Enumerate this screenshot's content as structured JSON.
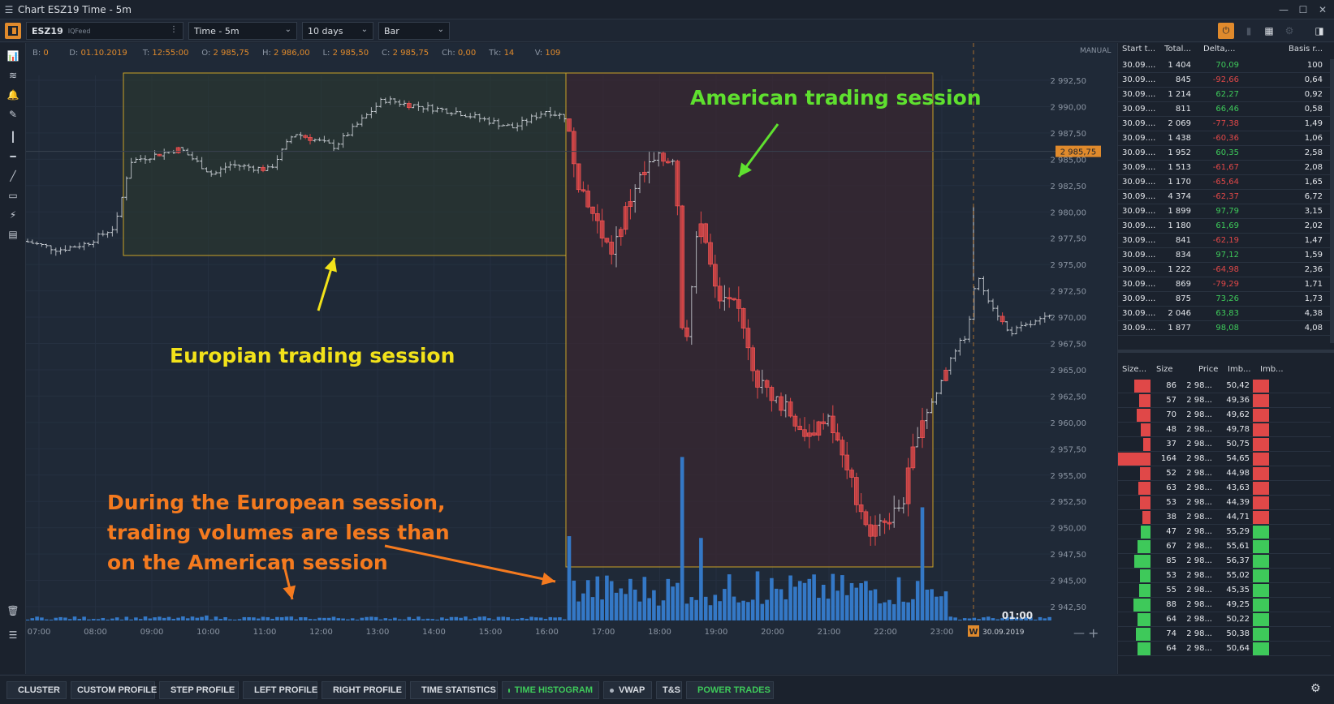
{
  "window": {
    "title": "Chart ESZ19 Time - 5m"
  },
  "toolbar": {
    "symbol": "ESZ19",
    "feed": "IQFeed",
    "timeframe": "Time - 5m",
    "period": "10 days",
    "chart_style": "Bar"
  },
  "ohlc": {
    "b_label": "B:",
    "b": "0",
    "d_label": "D:",
    "d": "01.10.2019",
    "t_label": "T:",
    "t": "12:55:00",
    "o_label": "O:",
    "o": "2 985,75",
    "h_label": "H:",
    "h": "2 986,00",
    "l_label": "L:",
    "l": "2 985,50",
    "c_label": "C:",
    "c": "2 985,75",
    "ch_label": "Ch:",
    "ch": "0,00",
    "tk_label": "Tk:",
    "tk": "14",
    "v_label": "V:",
    "v": "109"
  },
  "chart": {
    "mode": "MANUAL",
    "current_price": "2 985,75",
    "timer": "01:00",
    "week_marker": "W",
    "date_marker": "30.09.2019",
    "price_axis": [
      "2 992,50",
      "2 990,00",
      "2 987,50",
      "2 985,00",
      "2 982,50",
      "2 980,00",
      "2 977,50",
      "2 975,00",
      "2 972,50",
      "2 970,00",
      "2 967,50",
      "2 965,00",
      "2 962,50",
      "2 960,00",
      "2 957,50",
      "2 955,00",
      "2 952,50",
      "2 950,00",
      "2 947,50",
      "2 945,00",
      "2 942,50"
    ],
    "time_axis": [
      "07:00",
      "08:00",
      "09:00",
      "10:00",
      "11:00",
      "12:00",
      "13:00",
      "14:00",
      "15:00",
      "16:00",
      "17:00",
      "18:00",
      "19:00",
      "20:00",
      "21:00",
      "22:00",
      "23:00"
    ],
    "colors": {
      "european_box": "#c9a227",
      "american_box": "#c9a227",
      "bear": "#e04848",
      "bull": "#cfd4da",
      "volume": "#3478c6"
    }
  },
  "annotations": {
    "american": "American trading session",
    "european": "Europian trading session",
    "volume_note": "During the European session,\ntrading volumes are less than\n on the American session",
    "colors": {
      "american": "#5fe02f",
      "european": "#f2e21a",
      "volume_note": "#f47a1f"
    }
  },
  "trades_table": {
    "headers": [
      "Start t...",
      "Total...",
      "Delta,...",
      "Basis r..."
    ],
    "rows": [
      [
        "30.09....",
        "1 404",
        "70,09",
        "100"
      ],
      [
        "30.09....",
        "845",
        "-92,66",
        "0,64"
      ],
      [
        "30.09....",
        "1 214",
        "62,27",
        "0,92"
      ],
      [
        "30.09....",
        "811",
        "66,46",
        "0,58"
      ],
      [
        "30.09....",
        "2 069",
        "-77,38",
        "1,49"
      ],
      [
        "30.09....",
        "1 438",
        "-60,36",
        "1,06"
      ],
      [
        "30.09....",
        "1 952",
        "60,35",
        "2,58"
      ],
      [
        "30.09....",
        "1 513",
        "-61,67",
        "2,08"
      ],
      [
        "30.09....",
        "1 170",
        "-65,64",
        "1,65"
      ],
      [
        "30.09....",
        "4 374",
        "-62,37",
        "6,72"
      ],
      [
        "30.09....",
        "1 899",
        "97,79",
        "3,15"
      ],
      [
        "30.09....",
        "1 180",
        "61,69",
        "2,02"
      ],
      [
        "30.09....",
        "841",
        "-62,19",
        "1,47"
      ],
      [
        "30.09....",
        "834",
        "97,12",
        "1,59"
      ],
      [
        "30.09....",
        "1 222",
        "-64,98",
        "2,36"
      ],
      [
        "30.09....",
        "869",
        "-79,29",
        "1,71"
      ],
      [
        "30.09....",
        "875",
        "73,26",
        "1,73"
      ],
      [
        "30.09....",
        "2 046",
        "63,83",
        "4,38"
      ],
      [
        "30.09....",
        "1 877",
        "98,08",
        "4,08"
      ]
    ]
  },
  "imbalance_table": {
    "headers": [
      "Size...",
      "Size",
      "Price",
      "Imb...",
      "Imb..."
    ],
    "rows": [
      {
        "size": "86",
        "price": "2 98...",
        "imb": "50,42",
        "side": "sell",
        "bar": 0.5
      },
      {
        "size": "57",
        "price": "2 98...",
        "imb": "49,36",
        "side": "sell",
        "bar": 0.35
      },
      {
        "size": "70",
        "price": "2 98...",
        "imb": "49,62",
        "side": "sell",
        "bar": 0.42
      },
      {
        "size": "48",
        "price": "2 98...",
        "imb": "49,78",
        "side": "sell",
        "bar": 0.3
      },
      {
        "size": "37",
        "price": "2 98...",
        "imb": "50,75",
        "side": "sell",
        "bar": 0.23
      },
      {
        "size": "164",
        "price": "2 98...",
        "imb": "54,65",
        "side": "sell",
        "bar": 1.0
      },
      {
        "size": "52",
        "price": "2 98...",
        "imb": "44,98",
        "side": "sell",
        "bar": 0.32
      },
      {
        "size": "63",
        "price": "2 98...",
        "imb": "43,63",
        "side": "sell",
        "bar": 0.38
      },
      {
        "size": "53",
        "price": "2 98...",
        "imb": "44,39",
        "side": "sell",
        "bar": 0.32
      },
      {
        "size": "38",
        "price": "2 98...",
        "imb": "44,71",
        "side": "sell",
        "bar": 0.24
      },
      {
        "size": "47",
        "price": "2 98...",
        "imb": "55,29",
        "side": "buy",
        "bar": 0.29
      },
      {
        "size": "67",
        "price": "2 98...",
        "imb": "55,61",
        "side": "buy",
        "bar": 0.41
      },
      {
        "size": "85",
        "price": "2 98...",
        "imb": "56,37",
        "side": "buy",
        "bar": 0.5
      },
      {
        "size": "53",
        "price": "2 98...",
        "imb": "55,02",
        "side": "buy",
        "bar": 0.32
      },
      {
        "size": "55",
        "price": "2 98...",
        "imb": "45,35",
        "side": "buy",
        "bar": 0.34
      },
      {
        "size": "88",
        "price": "2 98...",
        "imb": "49,25",
        "side": "buy",
        "bar": 0.52
      },
      {
        "size": "64",
        "price": "2 98...",
        "imb": "50,22",
        "side": "buy",
        "bar": 0.39
      },
      {
        "size": "74",
        "price": "2 98...",
        "imb": "50,38",
        "side": "buy",
        "bar": 0.45
      },
      {
        "size": "64",
        "price": "2 98...",
        "imb": "50,64",
        "side": "buy",
        "bar": 0.39
      }
    ]
  },
  "bottom_tabs": [
    {
      "label": "CLUSTER",
      "active": false,
      "dot": true
    },
    {
      "label": "CUSTOM PROFILE",
      "active": false,
      "dot": false
    },
    {
      "label": "STEP PROFILE",
      "active": false,
      "dot": true
    },
    {
      "label": "LEFT PROFILE",
      "active": false,
      "dot": true
    },
    {
      "label": "RIGHT PROFILE",
      "active": false,
      "dot": true
    },
    {
      "label": "TIME STATISTICS",
      "active": false,
      "dot": true
    },
    {
      "label": "TIME HISTOGRAM",
      "active": true,
      "dot": true
    },
    {
      "label": "VWAP",
      "active": false,
      "dot": true
    },
    {
      "label": "T&S",
      "active": false,
      "dot": false
    },
    {
      "label": "POWER TRADES",
      "active": true,
      "dot": true
    }
  ]
}
